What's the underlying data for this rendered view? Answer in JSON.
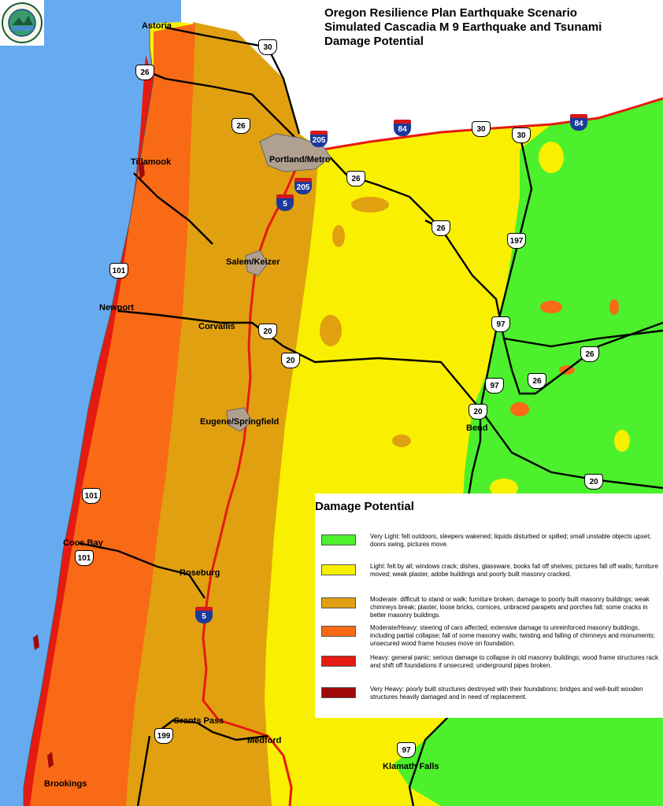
{
  "title": {
    "line1": "Oregon Resilience Plan Earthquake Scenario",
    "line2": "Simulated Cascadia M 9 Earthquake and Tsunami",
    "line3": "Damage Potential"
  },
  "colors": {
    "ocean": "#66aaf0",
    "very_light": "#4cf02c",
    "light": "#f8f000",
    "moderate": "#e0a010",
    "moderate_heavy": "#f86a16",
    "heavy": "#e61a10",
    "very_heavy": "#a00a0a",
    "interstate_route": "#e61a10",
    "highway": "#000000"
  },
  "cities": [
    {
      "name": "Astoria"
    },
    {
      "name": "Tillamook"
    },
    {
      "name": "Portland/Metro"
    },
    {
      "name": "Salem/Keizer"
    },
    {
      "name": "Newport"
    },
    {
      "name": "Corvallis"
    },
    {
      "name": "Eugene/Springfield"
    },
    {
      "name": "Bend"
    },
    {
      "name": "Coos Bay"
    },
    {
      "name": "Roseburg"
    },
    {
      "name": "Grants Pass"
    },
    {
      "name": "Medford"
    },
    {
      "name": "Klamath Falls"
    },
    {
      "name": "Brookings"
    }
  ],
  "us_routes": [
    {
      "number": "30"
    },
    {
      "number": "26"
    },
    {
      "number": "26"
    },
    {
      "number": "30"
    },
    {
      "number": "30"
    },
    {
      "number": "26"
    },
    {
      "number": "26"
    },
    {
      "number": "197"
    },
    {
      "number": "101"
    },
    {
      "number": "20"
    },
    {
      "number": "20"
    },
    {
      "number": "97"
    },
    {
      "number": "26"
    },
    {
      "number": "97"
    },
    {
      "number": "26"
    },
    {
      "number": "20"
    },
    {
      "number": "20"
    },
    {
      "number": "101"
    },
    {
      "number": "101"
    },
    {
      "number": "199"
    },
    {
      "number": "97"
    }
  ],
  "interstates": [
    {
      "number": "205"
    },
    {
      "number": "84"
    },
    {
      "number": "84"
    },
    {
      "number": "205"
    },
    {
      "number": "5"
    },
    {
      "number": "5"
    }
  ],
  "legend": {
    "title": "Damage Potential",
    "items": [
      {
        "level": "very_light",
        "color": "#4cf02c",
        "text": "Very Light: felt outdoors,  sleepers wakened; liquids disturbed or spilled; small unstable objects upset; doors swing, pictures move."
      },
      {
        "level": "light",
        "color": "#f8f000",
        "text": "Light: felt by all; windows crack; dishes, glassware, books fall off shelves; pictures fall off walls; furniture moved; weak plaster, adobe buildings and poorly built masonry cracked."
      },
      {
        "level": "moderate",
        "color": "#e0a010",
        "text": "Moderate: difficult to stand or walk; furniture broken; damage to poorly built masonry buildings; weak chimneys break; plaster, loose bricks, cornices, unbraced parapets and porches fall; some cracks in better masonry buildings."
      },
      {
        "level": "moderate_heavy",
        "color": "#f86a16",
        "text": "Moderate/Heavy: steering of cars affected; extensive damage to unreinforced masonry buildings, including partial collapse; fall of some masonry walls; twisting and falling of chimneys and monuments; unsecured wood frame houses move on foundation."
      },
      {
        "level": "heavy",
        "color": "#e61a10",
        "text": "Heavy: general panic; serious damage to collapse in old masonry buildings; wood frame structures rack and shift off foundations if unsecured; underground pipes broken."
      },
      {
        "level": "very_heavy",
        "color": "#a00a0a",
        "text": "Very Heavy: poorly built structures destroyed with their foundations; bridges and well-built wooden structures heavily damaged and in need of replacement."
      }
    ]
  }
}
